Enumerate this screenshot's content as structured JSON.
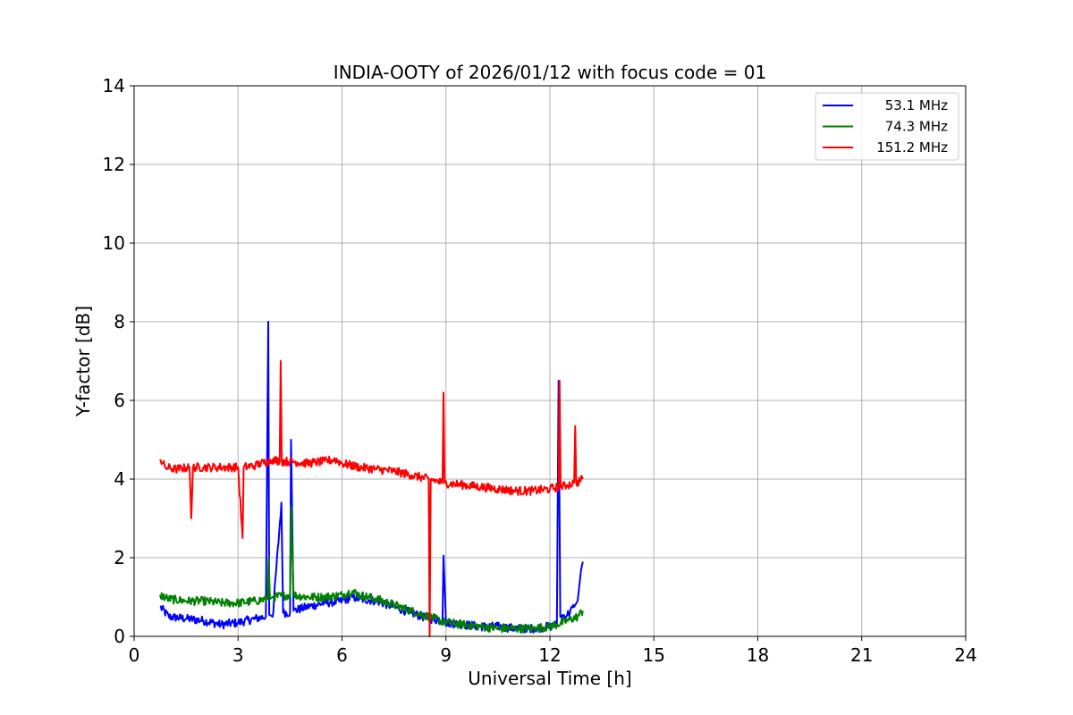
{
  "chart_data": {
    "type": "line",
    "title": "INDIA-OOTY of 2026/01/12 with focus code = 01",
    "xlabel": "Universal Time [h]",
    "ylabel": "Y-factor [dB]",
    "xlim": [
      0,
      24
    ],
    "ylim": [
      0,
      14
    ],
    "xticks": [
      0,
      3,
      6,
      9,
      12,
      15,
      18,
      21,
      24
    ],
    "yticks": [
      0,
      2,
      4,
      6,
      8,
      10,
      12,
      14
    ],
    "grid": true,
    "legend_position": "top-right",
    "series": [
      {
        "name": "53.1 MHz",
        "color": "#0000ff",
        "x": [
          0.75,
          1.0,
          1.5,
          2.0,
          2.5,
          3.0,
          3.5,
          3.8,
          3.87,
          3.9,
          4.0,
          4.25,
          4.3,
          4.5,
          4.53,
          4.6,
          5.0,
          5.5,
          6.0,
          6.3,
          6.5,
          7.0,
          7.5,
          8.0,
          8.5,
          8.9,
          8.93,
          9.0,
          9.5,
          10.0,
          10.5,
          11.0,
          11.5,
          12.0,
          12.2,
          12.25,
          12.3,
          12.5,
          12.7,
          12.8,
          12.9,
          12.95
        ],
        "y": [
          0.75,
          0.5,
          0.45,
          0.4,
          0.3,
          0.35,
          0.45,
          0.5,
          8.0,
          0.55,
          0.5,
          3.4,
          0.6,
          0.6,
          5.0,
          0.65,
          0.75,
          0.85,
          0.9,
          1.0,
          0.95,
          0.9,
          0.75,
          0.6,
          0.45,
          0.4,
          2.05,
          0.35,
          0.3,
          0.25,
          0.25,
          0.2,
          0.2,
          0.25,
          0.3,
          6.5,
          0.5,
          0.55,
          0.75,
          0.9,
          1.7,
          1.9
        ]
      },
      {
        "name": "74.3 MHz",
        "color": "#008000",
        "x": [
          0.75,
          1.0,
          1.5,
          2.0,
          2.5,
          3.0,
          3.5,
          3.85,
          3.88,
          3.92,
          4.0,
          4.5,
          4.53,
          4.6,
          5.0,
          5.5,
          6.0,
          6.3,
          6.5,
          7.0,
          7.5,
          8.0,
          8.5,
          9.0,
          9.5,
          10.0,
          10.5,
          11.0,
          11.5,
          12.0,
          12.2,
          12.5,
          12.8,
          12.95
        ],
        "y": [
          1.05,
          0.95,
          0.9,
          0.9,
          0.85,
          0.85,
          0.9,
          0.95,
          2.0,
          0.95,
          1.0,
          1.05,
          3.3,
          1.05,
          1.0,
          1.0,
          1.05,
          1.15,
          1.05,
          0.95,
          0.8,
          0.65,
          0.5,
          0.35,
          0.3,
          0.25,
          0.2,
          0.2,
          0.2,
          0.25,
          0.3,
          0.4,
          0.5,
          0.65
        ]
      },
      {
        "name": "151.2 MHz",
        "color": "#ff0000",
        "x": [
          0.75,
          0.9,
          1.2,
          1.6,
          1.65,
          1.7,
          2.0,
          2.2,
          2.5,
          3.0,
          3.13,
          3.16,
          3.5,
          3.85,
          4.0,
          4.2,
          4.23,
          4.26,
          4.5,
          5.0,
          5.5,
          5.8,
          6.0,
          6.5,
          7.0,
          7.5,
          8.0,
          8.5,
          8.53,
          8.56,
          8.9,
          8.93,
          8.96,
          9.5,
          10.0,
          10.5,
          11.0,
          11.5,
          12.0,
          12.25,
          12.28,
          12.31,
          12.5,
          12.7,
          12.73,
          12.76,
          12.95
        ],
        "y": [
          4.5,
          4.3,
          4.25,
          4.3,
          3.0,
          4.3,
          4.3,
          4.3,
          4.3,
          4.3,
          2.5,
          4.3,
          4.35,
          4.45,
          4.5,
          4.45,
          7.0,
          4.45,
          4.45,
          4.4,
          4.45,
          4.5,
          4.4,
          4.3,
          4.25,
          4.2,
          4.1,
          4.0,
          0.0,
          4.0,
          3.9,
          6.2,
          3.9,
          3.85,
          3.8,
          3.75,
          3.7,
          3.7,
          3.75,
          3.8,
          6.5,
          3.8,
          3.85,
          3.9,
          5.35,
          3.9,
          4.0
        ]
      }
    ]
  }
}
